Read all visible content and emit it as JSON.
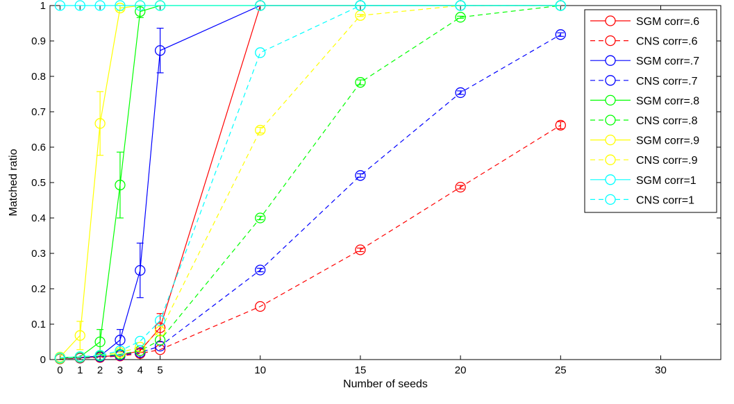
{
  "chart_data": {
    "type": "line",
    "title": "",
    "xlabel": "Number of seeds",
    "ylabel": "Matched ratio",
    "xlim": [
      -0.5,
      33
    ],
    "ylim": [
      0,
      1
    ],
    "xticks": [
      0,
      1,
      2,
      3,
      4,
      5,
      10,
      15,
      20,
      25,
      30
    ],
    "yticks": [
      0,
      0.1,
      0.2,
      0.3,
      0.4,
      0.5,
      0.6,
      0.7,
      0.8,
      0.9,
      1
    ],
    "ytick_labels": [
      "0",
      "0.1",
      "0.2",
      "0.3",
      "0.4",
      "0.5",
      "0.6",
      "0.7",
      "0.8",
      "0.9",
      "1"
    ],
    "grid": false,
    "legend_position": "top-right",
    "x": [
      0,
      1,
      2,
      3,
      4,
      5,
      10,
      15,
      20,
      25
    ],
    "series": [
      {
        "name": "SGM corr=.6",
        "color": "#ff0000",
        "linestyle": "solid",
        "marker": "circle",
        "values": [
          0.003,
          0.005,
          0.008,
          0.012,
          0.025,
          0.09,
          1,
          1,
          1,
          1
        ],
        "errors": [
          0,
          0,
          0,
          0,
          0.005,
          0.04,
          0,
          0,
          0,
          0
        ]
      },
      {
        "name": "CNS corr=.6",
        "color": "#ff0000",
        "linestyle": "dashed",
        "marker": "circle",
        "values": [
          0.002,
          0.004,
          0.006,
          0.01,
          0.017,
          0.028,
          0.15,
          0.31,
          0.487,
          0.662
        ],
        "errors": [
          0,
          0,
          0,
          0,
          0,
          0,
          0,
          0.005,
          0.005,
          0.01
        ]
      },
      {
        "name": "SGM corr=.7",
        "color": "#0000ff",
        "linestyle": "solid",
        "marker": "circle",
        "values": [
          0.004,
          0.006,
          0.01,
          0.055,
          0.252,
          0.873,
          1,
          1,
          1,
          1
        ],
        "errors": [
          0,
          0,
          0,
          0.03,
          0.077,
          0.063,
          0,
          0,
          0,
          0
        ]
      },
      {
        "name": "CNS corr=.7",
        "color": "#0000ff",
        "linestyle": "dashed",
        "marker": "circle",
        "values": [
          0.003,
          0.005,
          0.008,
          0.012,
          0.02,
          0.038,
          0.253,
          0.52,
          0.754,
          0.918
        ],
        "errors": [
          0,
          0,
          0,
          0,
          0,
          0,
          0.005,
          0.005,
          0.005,
          0.005
        ]
      },
      {
        "name": "SGM corr=.8",
        "color": "#00ff00",
        "linestyle": "solid",
        "marker": "circle",
        "values": [
          0.005,
          0.008,
          0.05,
          0.493,
          0.983,
          1,
          1,
          1,
          1,
          1
        ],
        "errors": [
          0,
          0,
          0.035,
          0.093,
          0.017,
          0,
          0,
          0,
          0,
          0
        ]
      },
      {
        "name": "CNS corr=.8",
        "color": "#00ff00",
        "linestyle": "dashed",
        "marker": "circle",
        "values": [
          0.003,
          0.006,
          0.01,
          0.015,
          0.025,
          0.055,
          0.4,
          0.783,
          0.967,
          1
        ],
        "errors": [
          0,
          0,
          0,
          0,
          0,
          0,
          0.005,
          0.007,
          0.003,
          0
        ]
      },
      {
        "name": "SGM corr=.9",
        "color": "#ffff00",
        "linestyle": "solid",
        "marker": "circle",
        "values": [
          0.007,
          0.068,
          0.667,
          0.993,
          1,
          1,
          1,
          1,
          1,
          1
        ],
        "errors": [
          0,
          0.04,
          0.09,
          0.007,
          0,
          0,
          0,
          0,
          0,
          0
        ]
      },
      {
        "name": "CNS corr=.9",
        "color": "#ffff00",
        "linestyle": "dashed",
        "marker": "circle",
        "values": [
          0.004,
          0.007,
          0.012,
          0.02,
          0.035,
          0.08,
          0.648,
          0.972,
          1,
          1
        ],
        "errors": [
          0,
          0,
          0,
          0,
          0,
          0,
          0.008,
          0.003,
          0,
          0
        ]
      },
      {
        "name": "SGM corr=1",
        "color": "#00ffff",
        "linestyle": "solid",
        "marker": "circle",
        "values": [
          1,
          1,
          1,
          1,
          1,
          1,
          1,
          1,
          1,
          1
        ],
        "errors": [
          0,
          0,
          0,
          0,
          0,
          0,
          0,
          0,
          0,
          0
        ]
      },
      {
        "name": "CNS corr=1",
        "color": "#00ffff",
        "linestyle": "dashed",
        "marker": "circle",
        "values": [
          0.005,
          0.008,
          0.012,
          0.025,
          0.052,
          0.11,
          0.867,
          1,
          1,
          1
        ],
        "errors": [
          0,
          0,
          0,
          0,
          0,
          0,
          0,
          0,
          0,
          0
        ]
      }
    ]
  }
}
